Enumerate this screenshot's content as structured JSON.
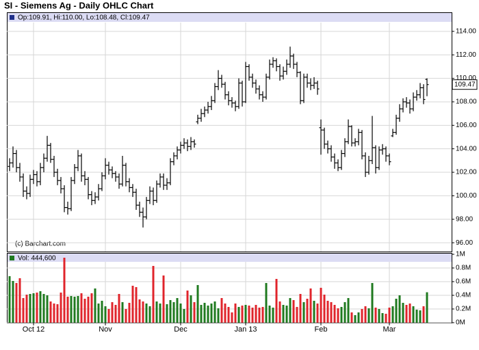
{
  "chart_data": [
    {
      "type": "ohlc",
      "title": "SI - Siemens Ag - Daily OHLC Chart",
      "header": "Op:109.91, Hi:110.00, Lo:108.48, Cl:109.47",
      "watermark": "(c) Barchart.com",
      "last_label": "109.47",
      "color": "#000000",
      "grid": true,
      "categories": [
        null,
        null,
        null,
        null,
        null,
        null,
        null,
        "Oct 12",
        null,
        null,
        null,
        null,
        null,
        null,
        null,
        null,
        null,
        null,
        null,
        null,
        null,
        null,
        null,
        null,
        null,
        null,
        null,
        null,
        "Nov",
        null,
        null,
        null,
        null,
        null,
        null,
        null,
        null,
        null,
        null,
        null,
        null,
        null,
        null,
        null,
        null,
        null,
        null,
        null,
        null,
        null,
        "Dec",
        null,
        null,
        null,
        null,
        null,
        null,
        null,
        null,
        null,
        null,
        null,
        null,
        null,
        null,
        null,
        null,
        null,
        null,
        "Jan 13",
        null,
        null,
        null,
        null,
        null,
        null,
        null,
        null,
        null,
        null,
        null,
        null,
        null,
        null,
        null,
        null,
        null,
        null,
        null,
        null,
        null,
        "Feb",
        null,
        null,
        null,
        null,
        null,
        null,
        null,
        null,
        null,
        null,
        null,
        null,
        null,
        null,
        null,
        null,
        null,
        null,
        null,
        "Mar",
        null,
        null,
        null,
        null,
        null,
        null,
        null,
        null,
        null,
        null,
        null
      ],
      "open": [
        102.5,
        102.8,
        103.6,
        102.4,
        101.6,
        100.4,
        100.2,
        101.4,
        101.8,
        101.2,
        102.4,
        103.2,
        104.3,
        103.1,
        102.0,
        101.3,
        100.6,
        99.0,
        98.9,
        101.3,
        102.4,
        103.4,
        101.7,
        101.4,
        100.1,
        99.6,
        99.9,
        100.6,
        101.7,
        102.6,
        102.2,
        101.9,
        101.6,
        101.0,
        102.6,
        101.2,
        100.7,
        100.3,
        99.2,
        98.6,
        98.2,
        99.6,
        100.4,
        99.6,
        101.0,
        101.6,
        100.9,
        101.1,
        102.9,
        103.4,
        103.9,
        104.3,
        104.5,
        104.2,
        104.6,
        106.3,
        106.6,
        107.0,
        107.3,
        107.6,
        108.1,
        109.3,
        110.0,
        109.5,
        108.6,
        108.1,
        107.9,
        107.6,
        109.6,
        108.0,
        111.0,
        110.1,
        109.6,
        109.1,
        108.6,
        108.4,
        110.1,
        111.2,
        111.5,
        111.0,
        110.2,
        110.6,
        111.2,
        111.9,
        111.2,
        110.5,
        108.1,
        110.1,
        109.6,
        109.4,
        109.6,
        105.8,
        105.6,
        104.4,
        104.0,
        103.3,
        102.8,
        102.4,
        103.6,
        104.6,
        105.9,
        104.5,
        104.6,
        105.4,
        103.4,
        102.0,
        103.0,
        104.1,
        102.4,
        103.9,
        104.0,
        103.4,
        105.1,
        105.4,
        106.6,
        107.4,
        108.0,
        107.9,
        107.4,
        108.4,
        108.6,
        109.2,
        109.91
      ],
      "high": [
        103.2,
        104.2,
        103.9,
        102.8,
        101.9,
        100.8,
        101.8,
        102.2,
        102.1,
        102.8,
        103.6,
        105.1,
        104.5,
        103.4,
        102.3,
        101.6,
        100.9,
        99.5,
        101.6,
        102.7,
        103.9,
        103.6,
        102.1,
        101.6,
        100.4,
        100.3,
        101.0,
        102.0,
        103.2,
        102.9,
        102.5,
        102.1,
        101.9,
        103.4,
        102.8,
        101.5,
        101.0,
        100.6,
        99.5,
        99.0,
        99.9,
        100.8,
        100.7,
        101.3,
        101.9,
        101.9,
        101.5,
        103.2,
        103.7,
        104.2,
        104.6,
        104.9,
        104.8,
        105.0,
        104.8,
        106.9,
        107.4,
        107.6,
        108.0,
        108.5,
        109.6,
        110.7,
        110.3,
        109.7,
        108.9,
        108.4,
        108.1,
        110.0,
        109.8,
        111.4,
        111.2,
        110.4,
        109.9,
        109.4,
        108.9,
        110.4,
        111.6,
        111.8,
        111.7,
        111.2,
        111.0,
        111.6,
        112.7,
        112.1,
        111.4,
        110.6,
        110.4,
        110.4,
        110.0,
        110.1,
        109.8,
        106.5,
        105.8,
        104.7,
        104.3,
        103.6,
        103.1,
        103.9,
        104.9,
        106.5,
        106.0,
        104.9,
        105.7,
        105.6,
        103.7,
        103.4,
        106.8,
        104.3,
        104.2,
        104.4,
        104.2,
        103.6,
        105.7,
        106.9,
        107.8,
        108.3,
        108.4,
        108.2,
        108.8,
        109.0,
        109.6,
        109.5,
        110.0
      ],
      "low": [
        102.1,
        102.4,
        102.0,
        101.2,
        99.9,
        99.7,
        99.9,
        101.0,
        100.8,
        100.9,
        102.0,
        102.9,
        102.8,
        101.6,
        100.9,
        100.2,
        98.6,
        98.4,
        98.7,
        101.0,
        102.1,
        101.2,
        100.9,
        99.7,
        99.2,
        99.3,
        99.6,
        100.4,
        101.4,
        101.8,
        101.5,
        101.2,
        100.6,
        100.8,
        100.8,
        100.3,
        99.9,
        98.8,
        98.2,
        97.3,
        98.0,
        99.3,
        99.2,
        99.4,
        100.7,
        100.5,
        100.5,
        100.9,
        102.6,
        103.1,
        103.6,
        104.0,
        103.8,
        103.9,
        104.1,
        106.1,
        106.3,
        106.7,
        107.0,
        107.3,
        107.9,
        109.0,
        109.2,
        108.2,
        107.7,
        107.5,
        107.2,
        107.4,
        107.6,
        107.9,
        109.8,
        109.2,
        108.7,
        108.2,
        108.0,
        108.2,
        109.9,
        110.9,
        110.6,
        109.8,
        109.9,
        110.3,
        110.9,
        110.8,
        110.1,
        107.8,
        107.9,
        109.2,
        109.0,
        109.1,
        108.6,
        103.5,
        104.0,
        103.6,
        102.9,
        102.3,
        102.1,
        102.2,
        103.3,
        104.4,
        104.2,
        104.2,
        104.3,
        103.1,
        101.6,
        101.8,
        102.7,
        101.9,
        102.2,
        103.5,
        102.9,
        102.6,
        105.0,
        105.2,
        106.3,
        107.1,
        107.5,
        107.0,
        107.2,
        108.1,
        108.3,
        107.8,
        108.48
      ],
      "close": [
        102.8,
        103.6,
        102.4,
        101.6,
        100.4,
        100.2,
        101.4,
        101.8,
        101.2,
        102.4,
        103.2,
        104.3,
        103.1,
        102.0,
        101.3,
        100.6,
        99.0,
        98.9,
        101.3,
        102.4,
        103.4,
        101.7,
        101.4,
        100.1,
        99.6,
        99.9,
        100.6,
        101.7,
        102.6,
        102.2,
        101.9,
        101.6,
        101.0,
        102.6,
        101.2,
        100.7,
        100.3,
        99.2,
        98.6,
        98.2,
        99.6,
        100.4,
        99.6,
        101.0,
        101.6,
        100.9,
        101.1,
        102.9,
        103.4,
        103.9,
        104.3,
        104.5,
        104.2,
        104.6,
        104.4,
        106.6,
        107.0,
        107.3,
        107.6,
        108.1,
        109.3,
        110.0,
        109.5,
        108.6,
        108.1,
        107.9,
        107.6,
        109.6,
        108.0,
        111.0,
        110.1,
        109.6,
        109.1,
        108.6,
        108.4,
        110.1,
        111.2,
        111.5,
        111.0,
        110.2,
        110.6,
        111.2,
        111.9,
        111.2,
        110.5,
        108.1,
        110.1,
        109.6,
        109.4,
        109.6,
        109.1,
        105.6,
        104.4,
        104.0,
        103.3,
        102.8,
        102.4,
        103.6,
        104.6,
        105.9,
        104.5,
        104.6,
        105.4,
        103.4,
        102.0,
        103.0,
        104.1,
        102.4,
        103.9,
        104.0,
        103.4,
        102.9,
        105.4,
        106.6,
        107.4,
        108.0,
        107.9,
        107.4,
        108.4,
        108.6,
        109.2,
        108.2,
        109.47
      ],
      "ylim": [
        95.25,
        114.75
      ],
      "yticks": [
        {
          "value": 96,
          "label": "96.00"
        },
        {
          "value": 98,
          "label": "98.00"
        },
        {
          "value": 100,
          "label": "100.00"
        },
        {
          "value": 102,
          "label": "102.00"
        },
        {
          "value": 104,
          "label": "104.00"
        },
        {
          "value": 106,
          "label": "106.00"
        },
        {
          "value": 108,
          "label": "108.00"
        },
        {
          "value": 110,
          "label": "110.00"
        },
        {
          "value": 112,
          "label": "112.00"
        },
        {
          "value": 114,
          "label": "114.00"
        }
      ]
    },
    {
      "type": "volume",
      "header": "Vol: 444,600",
      "up_color": "#1f7a1f",
      "down_color": "#e0242b",
      "grid": true,
      "values": [
        680000,
        610000,
        580000,
        650000,
        360000,
        410000,
        420000,
        430000,
        440000,
        460000,
        420000,
        400000,
        310000,
        280000,
        270000,
        440000,
        950000,
        380000,
        390000,
        380000,
        390000,
        430000,
        350000,
        380000,
        430000,
        500000,
        280000,
        320000,
        240000,
        200000,
        300000,
        260000,
        420000,
        300000,
        200000,
        290000,
        540000,
        520000,
        340000,
        310000,
        280000,
        240000,
        830000,
        310000,
        280000,
        690000,
        270000,
        330000,
        300000,
        360000,
        280000,
        200000,
        470000,
        400000,
        300000,
        550000,
        260000,
        290000,
        250000,
        280000,
        310000,
        210000,
        360000,
        280000,
        230000,
        150000,
        280000,
        230000,
        250000,
        260000,
        250000,
        220000,
        260000,
        220000,
        230000,
        580000,
        250000,
        220000,
        640000,
        310000,
        260000,
        250000,
        360000,
        330000,
        230000,
        420000,
        300000,
        350000,
        500000,
        320000,
        280000,
        510000,
        410000,
        320000,
        300000,
        260000,
        210000,
        230000,
        300000,
        360000,
        150000,
        110000,
        150000,
        200000,
        240000,
        210000,
        580000,
        220000,
        200000,
        140000,
        130000,
        220000,
        240000,
        350000,
        400000,
        290000,
        260000,
        280000,
        240000,
        190000,
        180000,
        240000,
        444600
      ],
      "ylim": [
        0,
        1000000
      ],
      "yticks": [
        {
          "value": 0,
          "label": "0M"
        },
        {
          "value": 200000,
          "label": "0.2M"
        },
        {
          "value": 400000,
          "label": "0.4M"
        },
        {
          "value": 600000,
          "label": "0.6M"
        },
        {
          "value": 800000,
          "label": "0.8M"
        },
        {
          "value": 1000000,
          "label": "1M"
        }
      ]
    }
  ]
}
